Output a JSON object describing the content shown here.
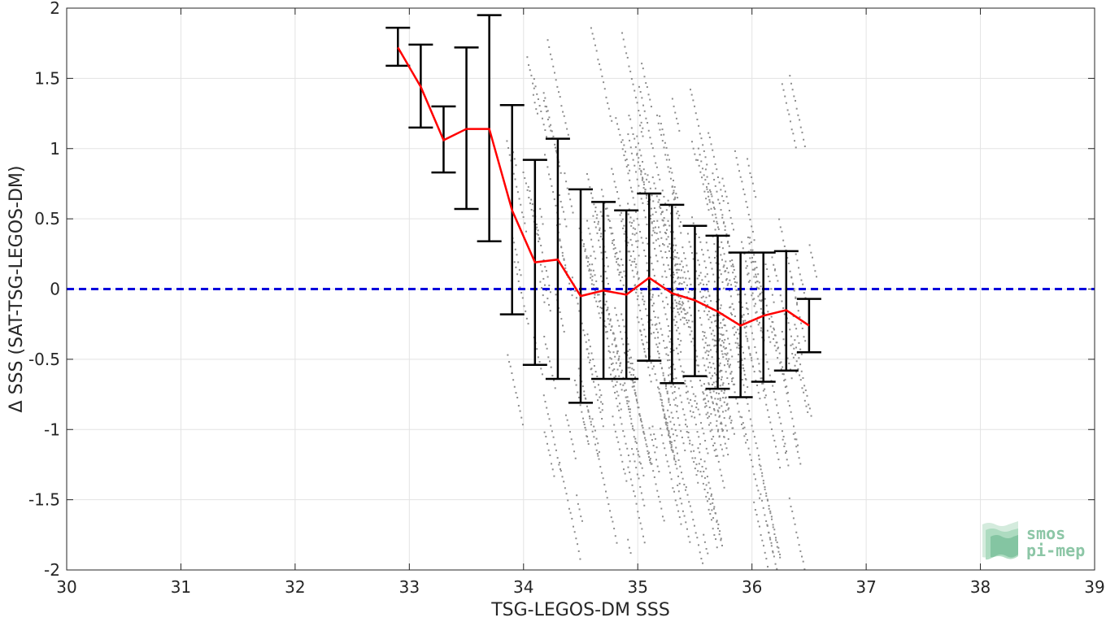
{
  "chart_data": {
    "type": "scatter",
    "xlabel": "TSG-LEGOS-DM SSS",
    "ylabel": "Δ SSS (SAT-TSG-LEGOS-DM)",
    "xlim": [
      30,
      39
    ],
    "ylim": [
      -2,
      2
    ],
    "xticks": [
      "30",
      "31",
      "32",
      "33",
      "34",
      "35",
      "36",
      "37",
      "38",
      "39"
    ],
    "yticks": [
      "-2",
      "-1.5",
      "-1",
      "-0.5",
      "0",
      "0.5",
      "1",
      "1.5",
      "2"
    ],
    "grid": true,
    "scatter_color": "#8c8c8c",
    "mean_color": "#ff0000",
    "errorbar_color": "#000000",
    "zero_line_color": "#0000dd",
    "zero_line_y": 0,
    "binned": {
      "x": [
        32.9,
        33.1,
        33.3,
        33.5,
        33.7,
        33.9,
        34.1,
        34.3,
        34.5,
        34.7,
        34.9,
        35.1,
        35.3,
        35.5,
        35.7,
        35.9,
        36.1,
        36.3,
        36.5
      ],
      "mean": [
        1.72,
        1.44,
        1.06,
        1.14,
        1.14,
        0.56,
        0.19,
        0.21,
        -0.05,
        -0.01,
        -0.04,
        0.08,
        -0.03,
        -0.08,
        -0.16,
        -0.26,
        -0.19,
        -0.15,
        -0.26
      ],
      "low": [
        1.59,
        1.15,
        0.83,
        0.57,
        0.34,
        -0.18,
        -0.54,
        -0.64,
        -0.81,
        -0.64,
        -0.64,
        -0.51,
        -0.67,
        -0.62,
        -0.71,
        -0.77,
        -0.66,
        -0.58,
        -0.45
      ],
      "high": [
        1.86,
        1.74,
        1.3,
        1.72,
        1.95,
        1.31,
        0.92,
        1.07,
        0.71,
        0.62,
        0.56,
        0.68,
        0.6,
        0.45,
        0.38,
        0.26,
        0.26,
        0.27,
        -0.07
      ]
    },
    "scatter_cloud": {
      "x_range": [
        33.5,
        36.6
      ],
      "center_trend": {
        "x": [
          33.9,
          34.3,
          34.7,
          35.1,
          35.5,
          35.9,
          36.3
        ],
        "y": [
          0.6,
          0.2,
          0.0,
          0.05,
          -0.05,
          -0.2,
          -0.15
        ]
      },
      "spread": 0.75
    }
  },
  "logo": {
    "line1": "smos",
    "line2": "pi-mep",
    "color": "#8cc6a6"
  }
}
